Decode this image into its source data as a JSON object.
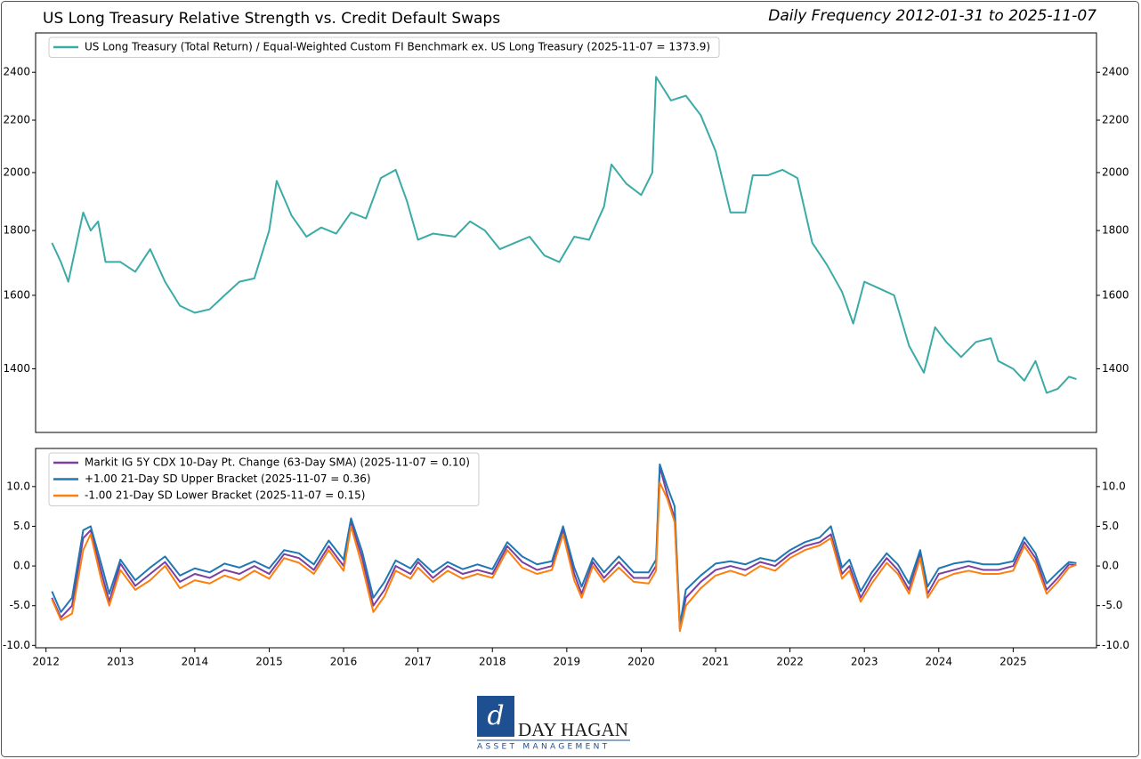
{
  "chart_data": [
    {
      "type": "line",
      "title": "US Long Treasury Relative Strength vs. Credit Default Swaps",
      "subtitle": "Daily Frequency 2012-01-31 to 2025-11-07",
      "log_y": true,
      "legend": "upper left",
      "x": [
        2012.08,
        2012.2,
        2012.3,
        2012.5,
        2012.6,
        2012.7,
        2012.8,
        2013.0,
        2013.2,
        2013.4,
        2013.6,
        2013.8,
        2014.0,
        2014.2,
        2014.4,
        2014.6,
        2014.8,
        2015.0,
        2015.1,
        2015.3,
        2015.5,
        2015.7,
        2015.9,
        2016.1,
        2016.3,
        2016.5,
        2016.7,
        2016.85,
        2017.0,
        2017.2,
        2017.5,
        2017.7,
        2017.9,
        2018.1,
        2018.3,
        2018.5,
        2018.7,
        2018.9,
        2019.1,
        2019.3,
        2019.5,
        2019.6,
        2019.8,
        2020.0,
        2020.15,
        2020.2,
        2020.4,
        2020.6,
        2020.8,
        2021.0,
        2021.2,
        2021.4,
        2021.5,
        2021.7,
        2021.9,
        2022.1,
        2022.3,
        2022.5,
        2022.7,
        2022.85,
        2023.0,
        2023.2,
        2023.4,
        2023.6,
        2023.8,
        2023.95,
        2024.1,
        2024.3,
        2024.5,
        2024.7,
        2024.8,
        2025.0,
        2025.15,
        2025.3,
        2025.45,
        2025.6,
        2025.75,
        2025.85
      ],
      "series": [
        {
          "name": "US Long Treasury (Total Return) / Equal-Weighted Custom FI Benchmark ex. US Long Treasury (2025-11-07 = 1373.9)",
          "color": "#3aaba6",
          "values": [
            1760,
            1700,
            1640,
            1860,
            1800,
            1830,
            1700,
            1700,
            1670,
            1740,
            1640,
            1570,
            1550,
            1560,
            1600,
            1640,
            1650,
            1800,
            1970,
            1850,
            1780,
            1810,
            1790,
            1860,
            1840,
            1980,
            2010,
            1900,
            1770,
            1790,
            1780,
            1830,
            1800,
            1740,
            1760,
            1780,
            1720,
            1700,
            1780,
            1770,
            1880,
            2030,
            1960,
            1920,
            2000,
            2380,
            2280,
            2300,
            2220,
            2080,
            1860,
            1860,
            1990,
            1990,
            2010,
            1980,
            1760,
            1690,
            1610,
            1520,
            1640,
            1620,
            1600,
            1460,
            1390,
            1510,
            1470,
            1430,
            1470,
            1480,
            1420,
            1400,
            1370,
            1420,
            1340,
            1350,
            1380,
            1373.9
          ]
        }
      ],
      "xlim": [
        2011.86,
        2026.12
      ],
      "ylim": [
        1247,
        2578
      ],
      "yticks": [
        1400,
        1600,
        1800,
        2000,
        2200,
        2400
      ]
    },
    {
      "type": "line",
      "legend": "upper left",
      "x": [
        2012.08,
        2012.2,
        2012.35,
        2012.5,
        2012.6,
        2012.75,
        2012.85,
        2013.0,
        2013.2,
        2013.4,
        2013.6,
        2013.8,
        2014.0,
        2014.2,
        2014.4,
        2014.6,
        2014.8,
        2015.0,
        2015.2,
        2015.4,
        2015.6,
        2015.8,
        2016.0,
        2016.1,
        2016.25,
        2016.4,
        2016.55,
        2016.7,
        2016.9,
        2017.0,
        2017.2,
        2017.4,
        2017.6,
        2017.8,
        2018.0,
        2018.2,
        2018.4,
        2018.6,
        2018.8,
        2018.95,
        2019.1,
        2019.2,
        2019.35,
        2019.5,
        2019.7,
        2019.9,
        2020.1,
        2020.2,
        2020.25,
        2020.35,
        2020.45,
        2020.52,
        2020.6,
        2020.8,
        2021.0,
        2021.2,
        2021.4,
        2021.6,
        2021.8,
        2022.0,
        2022.2,
        2022.4,
        2022.55,
        2022.7,
        2022.8,
        2022.95,
        2023.1,
        2023.3,
        2023.45,
        2023.6,
        2023.75,
        2023.85,
        2024.0,
        2024.2,
        2024.4,
        2024.6,
        2024.8,
        2025.0,
        2025.15,
        2025.3,
        2025.45,
        2025.6,
        2025.75,
        2025.85
      ],
      "series": [
        {
          "name": "Markit IG 5Y CDX 10-Day Pt. Change (63-Day SMA) (2025-11-07 = 0.10)",
          "color": "#7b3fa0",
          "values": [
            -4,
            -6.5,
            -5,
            3.5,
            4.5,
            -1,
            -4.5,
            0.3,
            -2.5,
            -1,
            0.5,
            -2,
            -1,
            -1.5,
            -0.5,
            -1,
            0,
            -1,
            1.5,
            1,
            -0.5,
            2.5,
            0,
            5.5,
            1,
            -5,
            -3,
            0,
            -1,
            0.5,
            -1.5,
            0,
            -1,
            -0.5,
            -1,
            2.5,
            0.5,
            -0.5,
            0,
            4.5,
            -1,
            -3.5,
            0.5,
            -1.5,
            0.5,
            -1.5,
            -1.5,
            0,
            12.5,
            9,
            6,
            -8,
            -4,
            -2,
            -0.5,
            0,
            -0.5,
            0.5,
            0,
            1.5,
            2.5,
            3,
            4,
            -1,
            0,
            -4,
            -1.5,
            1,
            -0.5,
            -3,
            1.5,
            -3.5,
            -1,
            -0.5,
            0,
            -0.5,
            -0.5,
            0,
            3,
            1,
            -3,
            -1.5,
            0.2,
            0.1
          ]
        },
        {
          "name": "+1.00 21-Day SD Upper Bracket (2025-11-07 = 0.36)",
          "color": "#1f77b4",
          "values": [
            -3.2,
            -5.8,
            -4,
            4.5,
            5,
            0,
            -3.5,
            0.8,
            -1.8,
            -0.2,
            1.2,
            -1.2,
            -0.3,
            -0.8,
            0.3,
            -0.2,
            0.6,
            -0.3,
            2,
            1.6,
            0.2,
            3.2,
            0.8,
            6,
            1.8,
            -4,
            -2,
            0.7,
            -0.3,
            0.9,
            -0.8,
            0.5,
            -0.4,
            0.2,
            -0.4,
            3,
            1.2,
            0.2,
            0.6,
            5,
            -0.2,
            -2.6,
            1,
            -0.8,
            1.2,
            -0.8,
            -0.8,
            0.8,
            12.8,
            10,
            7.5,
            -7.5,
            -3,
            -1.2,
            0.3,
            0.6,
            0.2,
            1,
            0.6,
            2,
            3,
            3.6,
            5,
            -0.2,
            0.8,
            -3.2,
            -0.8,
            1.6,
            0.2,
            -2.2,
            2,
            -2.6,
            -0.3,
            0.3,
            0.6,
            0.2,
            0.2,
            0.6,
            3.6,
            1.6,
            -2.2,
            -0.8,
            0.5,
            0.36
          ]
        },
        {
          "name": "-1.00 21-Day SD Lower Bracket (2025-11-07 = 0.15)",
          "color": "#ff7f0e",
          "values": [
            -4.2,
            -6.8,
            -6,
            2,
            4,
            -2,
            -5,
            -0.5,
            -3,
            -1.8,
            0,
            -2.8,
            -1.8,
            -2.2,
            -1.2,
            -1.8,
            -0.6,
            -1.6,
            1,
            0.4,
            -1,
            2,
            -0.6,
            5,
            0,
            -5.8,
            -3.8,
            -0.6,
            -1.6,
            -0.2,
            -2,
            -0.6,
            -1.6,
            -1,
            -1.5,
            2,
            -0.2,
            -1,
            -0.5,
            4,
            -1.8,
            -4,
            0,
            -2,
            -0.2,
            -2,
            -2.2,
            -0.6,
            10.5,
            8.5,
            5.5,
            -8.2,
            -5,
            -2.8,
            -1.2,
            -0.6,
            -1.2,
            0,
            -0.6,
            1,
            2,
            2.6,
            3.5,
            -1.6,
            -0.6,
            -4.5,
            -2.2,
            0.4,
            -1,
            -3.5,
            1,
            -4,
            -1.8,
            -1,
            -0.6,
            -1,
            -1,
            -0.6,
            2.5,
            0.4,
            -3.5,
            -2,
            -0.2,
            0.15
          ]
        }
      ],
      "xlim": [
        2011.86,
        2026.12
      ],
      "xticks": [
        2012,
        2013,
        2014,
        2015,
        2016,
        2017,
        2018,
        2019,
        2020,
        2021,
        2022,
        2023,
        2024,
        2025
      ],
      "ylim": [
        -10.3,
        14.8
      ],
      "yticks": [
        {
          "value": -10,
          "label": "-10.0"
        },
        {
          "value": -5,
          "label": "-5.0"
        },
        {
          "value": 0,
          "label": "0.0"
        },
        {
          "value": 5,
          "label": "5.0"
        },
        {
          "value": 10,
          "label": "10.0"
        }
      ]
    }
  ],
  "logo": {
    "name": "DAY HAGAN",
    "tagline": "ASSET MANAGEMENT"
  }
}
